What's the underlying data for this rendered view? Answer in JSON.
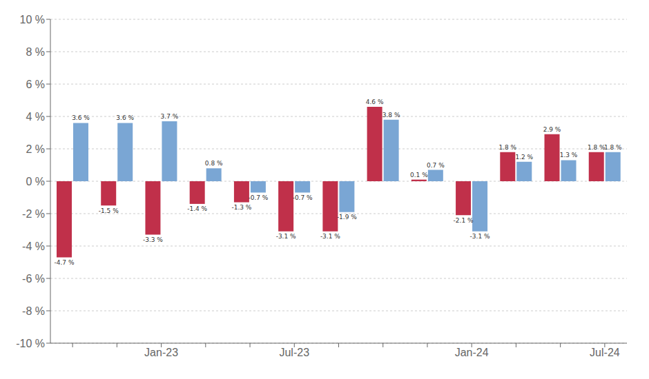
{
  "chart_data": {
    "type": "bar",
    "categories": [
      null,
      null,
      "Jan-23",
      null,
      null,
      "Jul-23",
      null,
      null,
      null,
      "Jan-24",
      null,
      null,
      "Jul-24"
    ],
    "series": [
      {
        "color": "#c0304a",
        "values": [
          -4.7,
          -1.5,
          -3.3,
          -1.4,
          -1.3,
          -3.1,
          -3.1,
          4.6,
          0.1,
          -2.1,
          1.8,
          2.9,
          1.8
        ],
        "value_labels": [
          "-4.7 %",
          "-1.5 %",
          "-3.3 %",
          "-1.4 %",
          "-1.3 %",
          "-3.1 %",
          "-3.1 %",
          "4.6 %",
          "0.1 %",
          "-2.1 %",
          "1.8 %",
          "2.9 %",
          "1.8 %"
        ]
      },
      {
        "color": "#7aa6d4",
        "values": [
          3.6,
          3.6,
          3.7,
          0.8,
          -0.7,
          -0.7,
          -1.9,
          3.8,
          0.7,
          -3.1,
          1.2,
          1.3,
          1.8
        ],
        "value_labels": [
          "3.6 %",
          "3.6 %",
          "3.7 %",
          "0.8 %",
          "-0.7 %",
          "-0.7 %",
          "-1.9 %",
          "3.8 %",
          "0.7 %",
          "-3.1 %",
          "1.2 %",
          "1.3 %",
          "1.8 %"
        ]
      }
    ],
    "ylim": [
      -10,
      10
    ],
    "yticks": [
      {
        "value": -10,
        "label": "-10 %"
      },
      {
        "value": -8,
        "label": "-8 %"
      },
      {
        "value": -6,
        "label": "-6 %"
      },
      {
        "value": -4,
        "label": "-4 %"
      },
      {
        "value": -2,
        "label": "-2 %"
      },
      {
        "value": 0,
        "label": "0 %"
      },
      {
        "value": 2,
        "label": "2 %"
      },
      {
        "value": 4,
        "label": "4 %"
      },
      {
        "value": 6,
        "label": "6 %"
      },
      {
        "value": 8,
        "label": "8 %"
      },
      {
        "value": 10,
        "label": "10 %"
      }
    ],
    "grid": true,
    "data_labels": true
  }
}
